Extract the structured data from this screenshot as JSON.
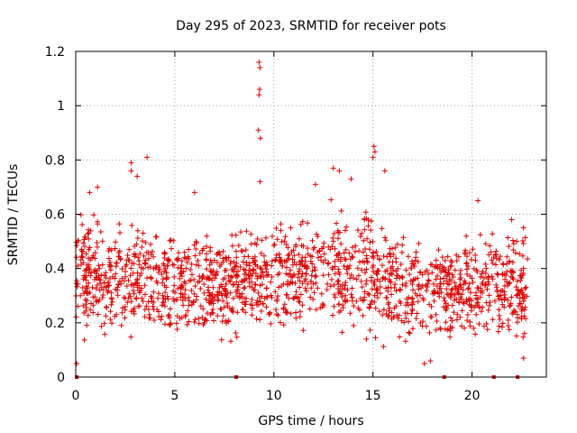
{
  "chart_data": {
    "type": "scatter",
    "title": "Day 295 of 2023, SRMTID for receiver pots",
    "xlabel": "GPS time / hours",
    "ylabel": "SRMTID / TECUs",
    "xlim": [
      0,
      23.75
    ],
    "ylim": [
      0,
      1.2
    ],
    "xticks": [
      0,
      5,
      10,
      15,
      20
    ],
    "xtick_labels": [
      "0",
      "5",
      "10",
      "15",
      "20"
    ],
    "yticks": [
      0,
      0.2,
      0.4,
      0.6,
      0.8,
      1.0,
      1.2
    ],
    "ytick_labels": [
      "0",
      "0.2",
      "0.4",
      "0.6",
      "0.8",
      "1",
      "1.2"
    ],
    "grid": true,
    "marker": "+",
    "color": "#dd0000",
    "data_range_hours": [
      0,
      22.8
    ],
    "zero_markers_x": [
      0.05,
      8.1,
      18.6,
      21.1,
      22.3
    ],
    "notable_points": [
      {
        "x": 9.25,
        "y": 1.16
      },
      {
        "x": 9.3,
        "y": 1.14
      },
      {
        "x": 9.28,
        "y": 1.06
      },
      {
        "x": 9.25,
        "y": 1.04
      },
      {
        "x": 9.22,
        "y": 0.91
      },
      {
        "x": 9.32,
        "y": 0.88
      },
      {
        "x": 15.05,
        "y": 0.85
      },
      {
        "x": 15.1,
        "y": 0.83
      },
      {
        "x": 15.0,
        "y": 0.81
      },
      {
        "x": 3.6,
        "y": 0.81
      },
      {
        "x": 2.8,
        "y": 0.79
      },
      {
        "x": 13.0,
        "y": 0.77
      },
      {
        "x": 15.6,
        "y": 0.76
      },
      {
        "x": 13.3,
        "y": 0.76
      },
      {
        "x": 2.8,
        "y": 0.76
      },
      {
        "x": 3.1,
        "y": 0.74
      },
      {
        "x": 13.9,
        "y": 0.73
      },
      {
        "x": 12.1,
        "y": 0.71
      },
      {
        "x": 1.1,
        "y": 0.7
      },
      {
        "x": 6.0,
        "y": 0.68
      },
      {
        "x": 0.7,
        "y": 0.68
      },
      {
        "x": 9.3,
        "y": 0.72
      },
      {
        "x": 17.6,
        "y": 0.05
      },
      {
        "x": 17.9,
        "y": 0.06
      },
      {
        "x": 22.6,
        "y": 0.07
      },
      {
        "x": 0.05,
        "y": 0.05
      },
      {
        "x": 22.6,
        "y": 0.55
      },
      {
        "x": 22.6,
        "y": 0.4
      },
      {
        "x": 22.0,
        "y": 0.58
      },
      {
        "x": 20.3,
        "y": 0.65
      }
    ],
    "density_profile": [
      {
        "x": 0.3,
        "lo": 0.1,
        "hi": 0.65
      },
      {
        "x": 1.5,
        "lo": 0.08,
        "hi": 0.62
      },
      {
        "x": 3.0,
        "lo": 0.1,
        "hi": 0.65
      },
      {
        "x": 5.0,
        "lo": 0.1,
        "hi": 0.58
      },
      {
        "x": 7.0,
        "lo": 0.12,
        "hi": 0.56
      },
      {
        "x": 9.0,
        "lo": 0.12,
        "hi": 0.62
      },
      {
        "x": 11.0,
        "lo": 0.15,
        "hi": 0.62
      },
      {
        "x": 13.0,
        "lo": 0.12,
        "hi": 0.68
      },
      {
        "x": 15.0,
        "lo": 0.1,
        "hi": 0.65
      },
      {
        "x": 17.0,
        "lo": 0.08,
        "hi": 0.55
      },
      {
        "x": 19.0,
        "lo": 0.08,
        "hi": 0.55
      },
      {
        "x": 21.0,
        "lo": 0.08,
        "hi": 0.6
      },
      {
        "x": 22.7,
        "lo": 0.07,
        "hi": 0.58
      }
    ],
    "generated_points_count": 1650
  }
}
